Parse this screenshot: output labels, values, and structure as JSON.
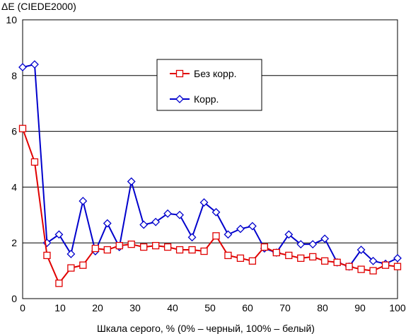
{
  "chart_data": {
    "type": "line",
    "title": "",
    "ylabel": "ΔE (CIEDE2000)",
    "xlabel": "Шкала серого, % (0% – черный, 100% – белый)",
    "xlim": [
      0,
      100
    ],
    "ylim": [
      0,
      10
    ],
    "xticks": [
      0,
      10,
      20,
      30,
      40,
      50,
      60,
      70,
      80,
      90,
      100
    ],
    "yticks": [
      0,
      2,
      4,
      6,
      8,
      10
    ],
    "grid": "horizontal",
    "legend_position": "upper-center",
    "x": [
      0,
      3.2,
      6.5,
      9.7,
      12.9,
      16.1,
      19.4,
      22.6,
      25.8,
      29,
      32.3,
      35.5,
      38.7,
      41.9,
      45.2,
      48.4,
      51.6,
      54.8,
      58.1,
      61.3,
      64.5,
      67.7,
      71,
      74.2,
      77.4,
      80.6,
      83.9,
      87.1,
      90.3,
      93.5,
      96.8,
      100
    ],
    "series": [
      {
        "name": "Без корр.",
        "color": "#e00000",
        "marker": "square",
        "values": [
          6.1,
          4.9,
          1.55,
          0.55,
          1.1,
          1.2,
          1.8,
          1.75,
          1.9,
          1.95,
          1.85,
          1.9,
          1.85,
          1.75,
          1.75,
          1.7,
          2.25,
          1.55,
          1.45,
          1.35,
          1.85,
          1.65,
          1.55,
          1.45,
          1.5,
          1.35,
          1.3,
          1.15,
          1.05,
          1.0,
          1.2,
          1.15
        ]
      },
      {
        "name": "Корр.",
        "color": "#0000cc",
        "marker": "diamond",
        "values": [
          8.3,
          8.4,
          2.0,
          2.3,
          1.6,
          3.5,
          1.7,
          2.7,
          1.85,
          4.2,
          2.65,
          2.75,
          3.05,
          3.0,
          2.2,
          3.45,
          3.1,
          2.3,
          2.5,
          2.6,
          1.8,
          1.65,
          2.3,
          1.95,
          1.95,
          2.15,
          1.3,
          1.15,
          1.75,
          1.35,
          1.25,
          1.45
        ]
      }
    ]
  }
}
